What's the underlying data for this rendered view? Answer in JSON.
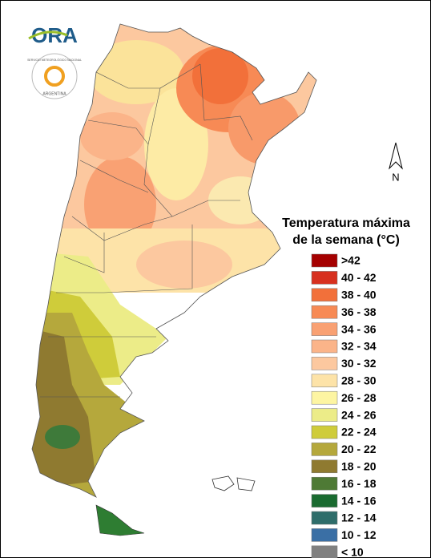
{
  "logo": {
    "text": "ORA"
  },
  "seal": {
    "top": "SERVICIO METEOROLÓGICO NACIONAL",
    "bottom": "ARGENTINA"
  },
  "north": "N",
  "legend": {
    "title_lines": [
      "Temperatura máxima",
      "de la semana (°C)"
    ],
    "items": [
      {
        "label": ">42",
        "color": "#a50000"
      },
      {
        "label": "40 - 42",
        "color": "#d7301f"
      },
      {
        "label": "38 - 40",
        "color": "#f2703a"
      },
      {
        "label": "36 - 38",
        "color": "#f78a55"
      },
      {
        "label": "34 - 36",
        "color": "#f9a173"
      },
      {
        "label": "32 - 34",
        "color": "#fbb489"
      },
      {
        "label": "30 - 32",
        "color": "#fcc89f"
      },
      {
        "label": "28 - 30",
        "color": "#fde3a8"
      },
      {
        "label": "26 - 28",
        "color": "#fdf5a2"
      },
      {
        "label": "24 - 26",
        "color": "#ecec88"
      },
      {
        "label": "22 - 24",
        "color": "#cfcc3a"
      },
      {
        "label": "20 - 22",
        "color": "#b5a83c"
      },
      {
        "label": "18 - 20",
        "color": "#8f7a30"
      },
      {
        "label": "16 - 18",
        "color": "#4e7a35"
      },
      {
        "label": "14 - 16",
        "color": "#1a6b30"
      },
      {
        "label": "12 - 14",
        "color": "#2e6d6a"
      },
      {
        "label": "10 - 12",
        "color": "#3a6fa5"
      },
      {
        "label": "< 10",
        "color": "#808080"
      }
    ]
  }
}
